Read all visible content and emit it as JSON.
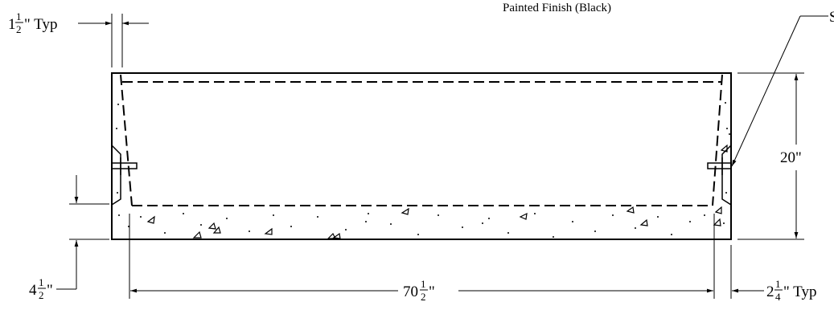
{
  "annotations": {
    "finish_label": "Painted Finish (Black)",
    "right_edge_label": "S"
  },
  "dimensions": {
    "wall_thickness": {
      "whole": "1",
      "num": "1",
      "den": "2",
      "suffix": "\" Typ"
    },
    "height": {
      "text": "20\""
    },
    "base_thickness": {
      "whole": "4",
      "num": "1",
      "den": "2",
      "suffix": "\""
    },
    "length": {
      "whole": "70",
      "num": "1",
      "den": "2",
      "suffix": "\""
    },
    "offset": {
      "whole": "2",
      "num": "1",
      "den": "4",
      "suffix": "\" Typ"
    }
  }
}
